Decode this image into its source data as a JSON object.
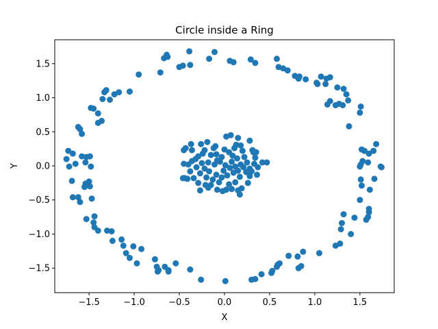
{
  "chart_data": {
    "type": "scatter",
    "title": "Circle inside a Ring",
    "xlabel": "X",
    "ylabel": "Y",
    "xlim": [
      -1.88,
      1.88
    ],
    "ylim": [
      -1.86,
      1.85
    ],
    "xticks": [
      -1.5,
      -1.0,
      -0.5,
      0.0,
      0.5,
      1.0,
      1.5
    ],
    "xtick_labels": [
      "−1.5",
      "−1.0",
      "−0.5",
      "0.0",
      "0.5",
      "1.0",
      "1.5"
    ],
    "yticks": [
      -1.5,
      -1.0,
      -0.5,
      0.0,
      0.5,
      1.0,
      1.5
    ],
    "ytick_labels": [
      "−1.5",
      "−1.0",
      "−0.5",
      "0.0",
      "0.5",
      "1.0",
      "1.5"
    ],
    "grid": false,
    "legend": "none",
    "marker_color": "#1f77b4",
    "series": [
      {
        "values_description_none": null,
        "points": [
          [
            -1.73,
            0.22
          ],
          [
            -1.75,
            0.1
          ],
          [
            -1.72,
            -0.01
          ],
          [
            -1.68,
            0.18
          ],
          [
            -1.65,
            0.03
          ],
          [
            -1.69,
            -0.22
          ],
          [
            -1.68,
            -0.46
          ],
          [
            -1.62,
            -0.46
          ],
          [
            -1.6,
            -0.53
          ],
          [
            -1.55,
            -0.31
          ],
          [
            -1.54,
            -0.26
          ],
          [
            -1.58,
            0.14
          ],
          [
            -1.49,
            0.14
          ],
          [
            -1.48,
            -0.01
          ],
          [
            -1.5,
            -0.23
          ],
          [
            -1.49,
            -0.3
          ],
          [
            -1.47,
            -0.48
          ],
          [
            -1.53,
            -0.78
          ],
          [
            -1.44,
            -0.74
          ],
          [
            -1.45,
            -0.83
          ],
          [
            -1.44,
            -0.9
          ],
          [
            -1.4,
            -0.95
          ],
          [
            -1.3,
            -0.95
          ],
          [
            -1.25,
            -0.96
          ],
          [
            -1.24,
            -1.1
          ],
          [
            -1.14,
            -1.08
          ],
          [
            -1.12,
            -1.17
          ],
          [
            -1.09,
            -1.28
          ],
          [
            -1.05,
            -1.35
          ],
          [
            -1.01,
            -1.18
          ],
          [
            -0.97,
            -1.43
          ],
          [
            -0.92,
            -1.22
          ],
          [
            -0.77,
            -1.37
          ],
          [
            -0.75,
            -1.48
          ],
          [
            -0.74,
            -1.55
          ],
          [
            -0.73,
            -1.53
          ],
          [
            -0.66,
            -1.48
          ],
          [
            -0.62,
            -1.53
          ],
          [
            -0.62,
            -1.55
          ],
          [
            -0.54,
            -1.43
          ],
          [
            -0.38,
            -1.52
          ],
          [
            -0.26,
            -1.67
          ],
          [
            0.01,
            -1.69
          ],
          [
            0.3,
            -1.67
          ],
          [
            0.34,
            -1.66
          ],
          [
            0.41,
            -1.59
          ],
          [
            0.52,
            -1.57
          ],
          [
            0.53,
            -1.54
          ],
          [
            0.58,
            -1.48
          ],
          [
            0.59,
            -1.45
          ],
          [
            0.61,
            -1.43
          ],
          [
            0.71,
            -1.32
          ],
          [
            0.81,
            -1.33
          ],
          [
            0.82,
            -1.5
          ],
          [
            0.85,
            -1.47
          ],
          [
            0.87,
            -1.26
          ],
          [
            1.05,
            -1.28
          ],
          [
            1.23,
            -1.17
          ],
          [
            1.28,
            -1.14
          ],
          [
            1.29,
            -0.93
          ],
          [
            1.3,
            -0.84
          ],
          [
            1.32,
            -0.71
          ],
          [
            1.4,
            -1.0
          ],
          [
            1.44,
            -0.76
          ],
          [
            1.5,
            -0.5
          ],
          [
            1.52,
            -0.29
          ],
          [
            1.51,
            -0.2
          ],
          [
            1.57,
            -0.79
          ],
          [
            1.59,
            -0.75
          ],
          [
            1.6,
            -0.68
          ],
          [
            1.6,
            -0.63
          ],
          [
            1.61,
            -0.35
          ],
          [
            1.66,
            -0.19
          ],
          [
            1.73,
            -0.01
          ],
          [
            1.74,
            -0.02
          ],
          [
            1.65,
            0.22
          ],
          [
            1.68,
            0.32
          ],
          [
            1.6,
            0.18
          ],
          [
            1.55,
            0.22
          ],
          [
            1.52,
            0.24
          ],
          [
            1.53,
            0.07
          ],
          [
            1.51,
            0.02
          ],
          [
            1.59,
            0.05
          ],
          [
            1.5,
            -0.01
          ],
          [
            1.38,
            0.58
          ],
          [
            1.5,
            0.78
          ],
          [
            1.51,
            0.87
          ],
          [
            1.31,
            0.89
          ],
          [
            1.27,
            0.91
          ],
          [
            1.23,
            0.89
          ],
          [
            1.17,
            0.95
          ],
          [
            1.14,
            0.9
          ],
          [
            1.32,
            1.13
          ],
          [
            1.37,
            0.96
          ],
          [
            1.35,
            1.05
          ],
          [
            1.25,
            1.15
          ],
          [
            1.13,
            1.28
          ],
          [
            1.12,
            1.2
          ],
          [
            1.07,
            1.31
          ],
          [
            1.17,
            1.3
          ],
          [
            1.03,
            1.2
          ],
          [
            1.02,
            1.22
          ],
          [
            0.9,
            1.27
          ],
          [
            0.82,
            1.28
          ],
          [
            0.83,
            1.31
          ],
          [
            0.78,
            1.32
          ],
          [
            0.7,
            1.4
          ],
          [
            0.65,
            1.43
          ],
          [
            0.6,
            1.45
          ],
          [
            0.58,
            1.57
          ],
          [
            0.34,
            1.51
          ],
          [
            0.29,
            1.56
          ],
          [
            0.1,
            1.52
          ],
          [
            0.06,
            1.54
          ],
          [
            -0.17,
            1.57
          ],
          [
            -0.11,
            1.67
          ],
          [
            -0.38,
            1.48
          ],
          [
            -0.46,
            1.47
          ],
          [
            -0.5,
            1.45
          ],
          [
            -0.39,
            1.68
          ],
          [
            -0.64,
            1.63
          ],
          [
            -0.63,
            1.6
          ],
          [
            -0.67,
            1.58
          ],
          [
            -0.71,
            1.37
          ],
          [
            -0.95,
            1.34
          ],
          [
            -1.05,
            1.09
          ],
          [
            -1.17,
            1.08
          ],
          [
            -1.22,
            1.05
          ],
          [
            -1.27,
            0.97
          ],
          [
            -1.31,
            1.11
          ],
          [
            -1.33,
            1.08
          ],
          [
            -1.35,
            0.98
          ],
          [
            -1.36,
            0.66
          ],
          [
            -1.4,
            0.63
          ],
          [
            -1.4,
            0.77
          ],
          [
            -1.45,
            0.84
          ],
          [
            -1.48,
            0.85
          ],
          [
            -1.58,
            0.47
          ],
          [
            -1.62,
            0.57
          ],
          [
            -1.6,
            0.54
          ],
          [
            -1.54,
            0.05
          ],
          [
            -1.53,
            0.13
          ],
          [
            -0.45,
            0.23
          ],
          [
            -0.43,
            0.26
          ],
          [
            -0.36,
            0.23
          ],
          [
            -0.37,
            0.32
          ],
          [
            -0.26,
            0.32
          ],
          [
            -0.19,
            0.35
          ],
          [
            -0.1,
            0.29
          ],
          [
            0.02,
            0.43
          ],
          [
            0.07,
            0.45
          ],
          [
            0.15,
            0.41
          ],
          [
            0.13,
            0.31
          ],
          [
            0.18,
            0.3
          ],
          [
            0.28,
            0.37
          ],
          [
            0.31,
            0.23
          ],
          [
            0.32,
            0.2
          ],
          [
            0.34,
            0.12
          ],
          [
            0.42,
            0.05
          ],
          [
            0.47,
            0.05
          ],
          [
            0.37,
            -0.02
          ],
          [
            0.28,
            -0.04
          ],
          [
            0.36,
            -0.13
          ],
          [
            0.26,
            -0.25
          ],
          [
            0.19,
            -0.33
          ],
          [
            0.15,
            -0.36
          ],
          [
            0.17,
            -0.42
          ],
          [
            0.08,
            -0.34
          ],
          [
            0.02,
            -0.35
          ],
          [
            -0.02,
            -0.37
          ],
          [
            -0.08,
            -0.35
          ],
          [
            -0.15,
            -0.28
          ],
          [
            -0.18,
            -0.32
          ],
          [
            -0.27,
            -0.36
          ],
          [
            -0.29,
            -0.25
          ],
          [
            -0.34,
            -0.18
          ],
          [
            -0.41,
            -0.19
          ],
          [
            -0.44,
            -0.18
          ],
          [
            -0.46,
            -0.18
          ],
          [
            -0.45,
            0.03
          ],
          [
            -0.36,
            0.07
          ],
          [
            -0.29,
            0.14
          ],
          [
            -0.22,
            0.23
          ],
          [
            -0.15,
            0.16
          ],
          [
            -0.09,
            0.17
          ],
          [
            -0.03,
            0.13
          ],
          [
            0.05,
            0.2
          ],
          [
            0.09,
            0.15
          ],
          [
            0.14,
            0.11
          ],
          [
            0.22,
            0.13
          ],
          [
            0.25,
            0.05
          ],
          [
            0.21,
            -0.02
          ],
          [
            0.15,
            -0.07
          ],
          [
            0.1,
            -0.1
          ],
          [
            0.03,
            -0.14
          ],
          [
            -0.03,
            -0.17
          ],
          [
            -0.09,
            -0.13
          ],
          [
            -0.17,
            -0.08
          ],
          [
            -0.22,
            -0.04
          ],
          [
            -0.25,
            0.04
          ],
          [
            -0.18,
            0.05
          ],
          [
            -0.11,
            0.02
          ],
          [
            -0.05,
            0.06
          ],
          [
            0.01,
            0.01
          ],
          [
            0.06,
            -0.03
          ],
          [
            0.12,
            -0.01
          ],
          [
            0.18,
            0.02
          ],
          [
            0.24,
            -0.09
          ],
          [
            0.28,
            -0.15
          ],
          [
            0.12,
            -0.24
          ],
          [
            0.05,
            -0.27
          ],
          [
            -0.06,
            -0.24
          ],
          [
            -0.13,
            -0.2
          ],
          [
            -0.2,
            -0.17
          ],
          [
            -0.27,
            -0.11
          ],
          [
            -0.31,
            -0.02
          ],
          [
            -0.32,
            0.1
          ],
          [
            -0.24,
            0.18
          ],
          [
            -0.12,
            0.26
          ],
          [
            0.0,
            0.24
          ],
          [
            0.11,
            0.26
          ],
          [
            0.2,
            0.22
          ],
          [
            0.33,
            0.03
          ],
          [
            0.3,
            -0.08
          ],
          [
            -0.38,
            -0.08
          ],
          [
            -0.4,
            0.02
          ],
          [
            0.08,
            0.06
          ],
          [
            -0.01,
            -0.07
          ],
          [
            0.17,
            -0.16
          ],
          [
            -0.08,
            0.08
          ],
          [
            0.35,
            0.2
          ],
          [
            -0.21,
            -0.28
          ]
        ]
      }
    ]
  }
}
